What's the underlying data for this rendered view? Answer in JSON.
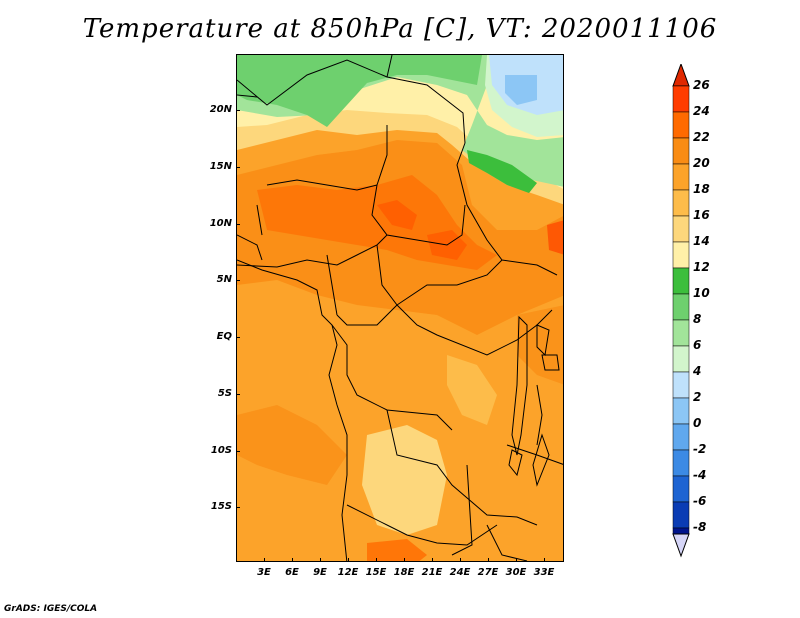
{
  "title": "Temperature at 850hPa [C], VT: 2020011106",
  "credit": "GrADS: IGES/COLA",
  "lat_labels": [
    "20N",
    "15N",
    "10N",
    "5N",
    "EQ",
    "5S",
    "10S",
    "15S"
  ],
  "lon_labels": [
    "3E",
    "6E",
    "9E",
    "12E",
    "15E",
    "18E",
    "21E",
    "24E",
    "27E",
    "30E",
    "33E"
  ],
  "colorbar": {
    "labels": [
      "26",
      "24",
      "22",
      "20",
      "18",
      "16",
      "14",
      "12",
      "10",
      "8",
      "6",
      "4",
      "2",
      "0",
      "-2",
      "-4",
      "-6",
      "-8"
    ],
    "colors": [
      "#ff3c00",
      "#ff6a00",
      "#f98c14",
      "#fca32a",
      "#fdbc4a",
      "#fdd77c",
      "#fff0a8",
      "#3cbe3c",
      "#6ed06e",
      "#a2e49a",
      "#d2f5cc",
      "#bfe1fb",
      "#8cc6f5",
      "#60a8ee",
      "#3c8ae4",
      "#1e64d2",
      "#0a3cb4",
      "#00148c"
    ],
    "top_arrow_color": "#e02800",
    "bottom_arrow_color": "#d6d6f8"
  },
  "chart_data": {
    "type": "heatmap",
    "title": "Temperature at 850hPa [C], VT: 2020011106",
    "variable": "Temperature at 850hPa",
    "units": "C",
    "valid_time": "2020011106",
    "lon_range": [
      0,
      35
    ],
    "lat_range": [
      -20,
      24
    ],
    "x_ticks": [
      "3E",
      "6E",
      "9E",
      "12E",
      "15E",
      "18E",
      "21E",
      "24E",
      "27E",
      "30E",
      "33E"
    ],
    "y_ticks": [
      "20N",
      "15N",
      "10N",
      "5N",
      "EQ",
      "5S",
      "10S",
      "15S"
    ],
    "contour_levels": [
      -8,
      -6,
      -4,
      -2,
      0,
      2,
      4,
      6,
      8,
      10,
      12,
      14,
      16,
      18,
      20,
      22,
      24,
      26
    ]
  }
}
